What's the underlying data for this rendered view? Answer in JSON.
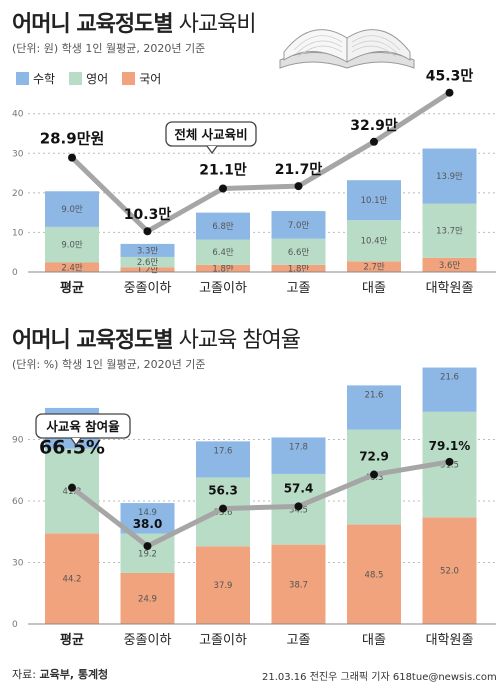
{
  "colors": {
    "math": "#8db8e6",
    "english": "#b9dcc6",
    "korean": "#f0a37c",
    "line": "#a6a6a6",
    "dot": "#111111"
  },
  "top": {
    "title_bold": "어머니 교육정도별",
    "title_light": "사교육비",
    "unit": "(단위: 원) 학생 1인 월평균, 2020년 기준",
    "legend": [
      "수학",
      "영어",
      "국어"
    ],
    "callout": "전체 사교육비"
  },
  "bottom": {
    "title_bold": "어머니 교육정도별",
    "title_light": "사교육 참여율",
    "unit": "(단위: %) 학생 1인 월평균, 2020년 기준",
    "callout": "사교육 참여율"
  },
  "footer": {
    "source_label": "자료:",
    "source": "교육부, 통계청",
    "credit": "21.03.16 전진우 그래픽 기자 618tue@newsis.com"
  },
  "chart_data": [
    {
      "type": "bar",
      "stacked": true,
      "categories": [
        "평균",
        "중졸이하",
        "고졸이하",
        "고졸",
        "대졸",
        "대학원졸"
      ],
      "yticks": [
        0,
        10,
        20,
        30,
        40
      ],
      "ylim": [
        0,
        47
      ],
      "series": [
        {
          "name": "국어",
          "values": [
            2.4,
            1.2,
            1.8,
            1.8,
            2.7,
            3.6
          ],
          "labels": [
            "2.4만",
            "1.2만",
            "1.8만",
            "1.8만",
            "2.7만",
            "3.6만"
          ]
        },
        {
          "name": "영어",
          "values": [
            9.0,
            2.6,
            6.4,
            6.6,
            10.4,
            13.7
          ],
          "labels": [
            "9.0만",
            "2.6만",
            "6.4만",
            "6.6만",
            "10.4만",
            "13.7만"
          ]
        },
        {
          "name": "수학",
          "values": [
            9.0,
            3.3,
            6.8,
            7.0,
            10.1,
            13.9
          ],
          "labels": [
            "9.0만",
            "3.3만",
            "6.8만",
            "7.0만",
            "10.1만",
            "13.9만"
          ]
        }
      ],
      "line": {
        "name": "전체 사교육비",
        "values": [
          28.9,
          10.3,
          21.1,
          21.7,
          32.9,
          45.3
        ],
        "labels": [
          "28.9만원",
          "10.3만",
          "21.1만",
          "21.7만",
          "32.9만",
          "45.3만"
        ]
      }
    },
    {
      "type": "bar",
      "stacked": true,
      "categories": [
        "평균",
        "중졸이하",
        "고졸이하",
        "고졸",
        "대졸",
        "대학원졸"
      ],
      "yticks": [
        0,
        30,
        60,
        90
      ],
      "ylim": [
        0,
        120
      ],
      "series": [
        {
          "name": "국어",
          "values": [
            44.2,
            24.9,
            37.9,
            38.7,
            48.5,
            52.0
          ],
          "labels": [
            "44.2",
            "24.9",
            "37.9",
            "38.7",
            "48.5",
            "52.0"
          ]
        },
        {
          "name": "영어",
          "values": [
            41.3,
            19.2,
            33.6,
            34.5,
            46.3,
            51.5
          ],
          "labels": [
            "41.3",
            "19.2",
            "33.6",
            "34.5",
            "46.3",
            "51.5"
          ]
        },
        {
          "name": "수학",
          "values": [
            19.9,
            14.9,
            17.6,
            17.8,
            21.6,
            21.6
          ],
          "labels": [
            "19.9",
            "14.9",
            "17.6",
            "17.8",
            "21.6",
            "21.6"
          ]
        }
      ],
      "line": {
        "name": "사교육 참여율",
        "values": [
          66.5,
          38.0,
          56.3,
          57.4,
          72.9,
          79.1
        ],
        "labels": [
          "66.5%",
          "38.0",
          "56.3",
          "57.4",
          "72.9",
          "79.1%"
        ]
      }
    }
  ]
}
